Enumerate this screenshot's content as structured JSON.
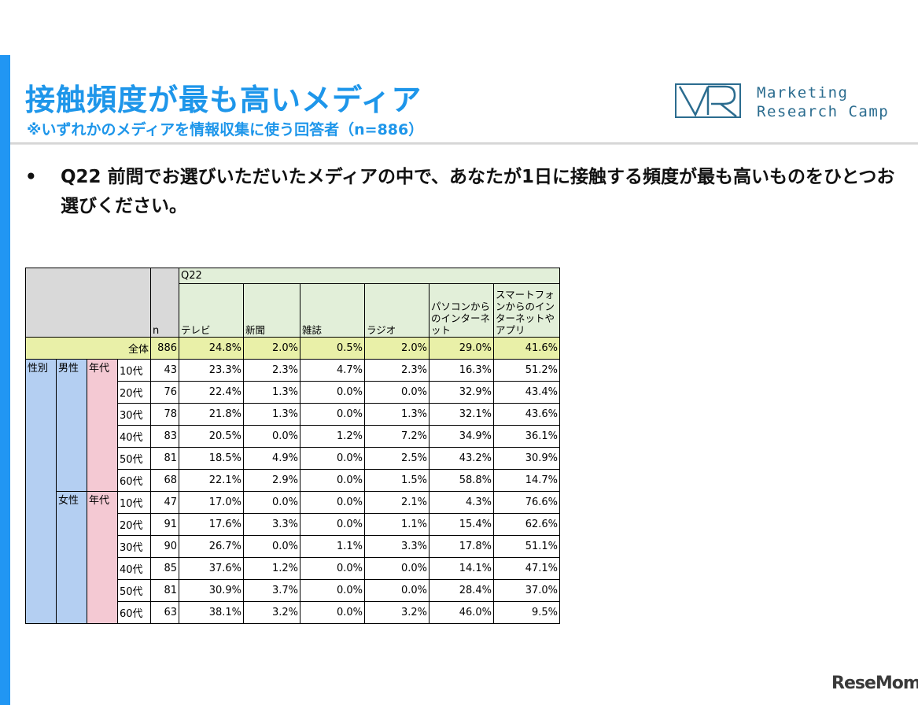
{
  "slide": {
    "title": "接触頻度が最も高いメディア",
    "subtitle": "※いずれかのメディアを情報収集に使う回答者（n=886）",
    "bullet": "•",
    "question": "Q22 前問でお選びいただいたメディアの中で、あなたが1日に接触する頻度が最も高いものをひとつお選びください。"
  },
  "logo": {
    "mark": "VR",
    "line1": "Marketing",
    "line2": "Research Camp",
    "color": "#2b6c8f"
  },
  "watermark": "ReseMom",
  "colors": {
    "accent": "#2196f3",
    "title": "#1e96ea"
  },
  "table": {
    "group_header": "Q22",
    "n_header": "n",
    "columns": [
      "テレビ",
      "新聞",
      "雑誌",
      "ラジオ",
      "パソコンからのインターネット",
      "スマートフォンからのインターネットやアプリ"
    ],
    "total": {
      "label": "全体",
      "n": "886",
      "values": [
        "24.8%",
        "2.0%",
        "0.5%",
        "2.0%",
        "29.0%",
        "41.6%"
      ]
    },
    "dim_label": "性別",
    "age_label": "年代",
    "groups": [
      {
        "gender": "男性",
        "rows": [
          {
            "age": "10代",
            "n": "43",
            "values": [
              "23.3%",
              "2.3%",
              "4.7%",
              "2.3%",
              "16.3%",
              "51.2%"
            ]
          },
          {
            "age": "20代",
            "n": "76",
            "values": [
              "22.4%",
              "1.3%",
              "0.0%",
              "0.0%",
              "32.9%",
              "43.4%"
            ]
          },
          {
            "age": "30代",
            "n": "78",
            "values": [
              "21.8%",
              "1.3%",
              "0.0%",
              "1.3%",
              "32.1%",
              "43.6%"
            ]
          },
          {
            "age": "40代",
            "n": "83",
            "values": [
              "20.5%",
              "0.0%",
              "1.2%",
              "7.2%",
              "34.9%",
              "36.1%"
            ]
          },
          {
            "age": "50代",
            "n": "81",
            "values": [
              "18.5%",
              "4.9%",
              "0.0%",
              "2.5%",
              "43.2%",
              "30.9%"
            ]
          },
          {
            "age": "60代",
            "n": "68",
            "values": [
              "22.1%",
              "2.9%",
              "0.0%",
              "1.5%",
              "58.8%",
              "14.7%"
            ]
          }
        ]
      },
      {
        "gender": "女性",
        "rows": [
          {
            "age": "10代",
            "n": "47",
            "values": [
              "17.0%",
              "0.0%",
              "0.0%",
              "2.1%",
              "4.3%",
              "76.6%"
            ]
          },
          {
            "age": "20代",
            "n": "91",
            "values": [
              "17.6%",
              "3.3%",
              "0.0%",
              "1.1%",
              "15.4%",
              "62.6%"
            ]
          },
          {
            "age": "30代",
            "n": "90",
            "values": [
              "26.7%",
              "0.0%",
              "1.1%",
              "3.3%",
              "17.8%",
              "51.1%"
            ]
          },
          {
            "age": "40代",
            "n": "85",
            "values": [
              "37.6%",
              "1.2%",
              "0.0%",
              "0.0%",
              "14.1%",
              "47.1%"
            ]
          },
          {
            "age": "50代",
            "n": "81",
            "values": [
              "30.9%",
              "3.7%",
              "0.0%",
              "0.0%",
              "28.4%",
              "37.0%"
            ]
          },
          {
            "age": "60代",
            "n": "63",
            "values": [
              "38.1%",
              "3.2%",
              "0.0%",
              "3.2%",
              "46.0%",
              "9.5%"
            ]
          }
        ]
      }
    ]
  }
}
